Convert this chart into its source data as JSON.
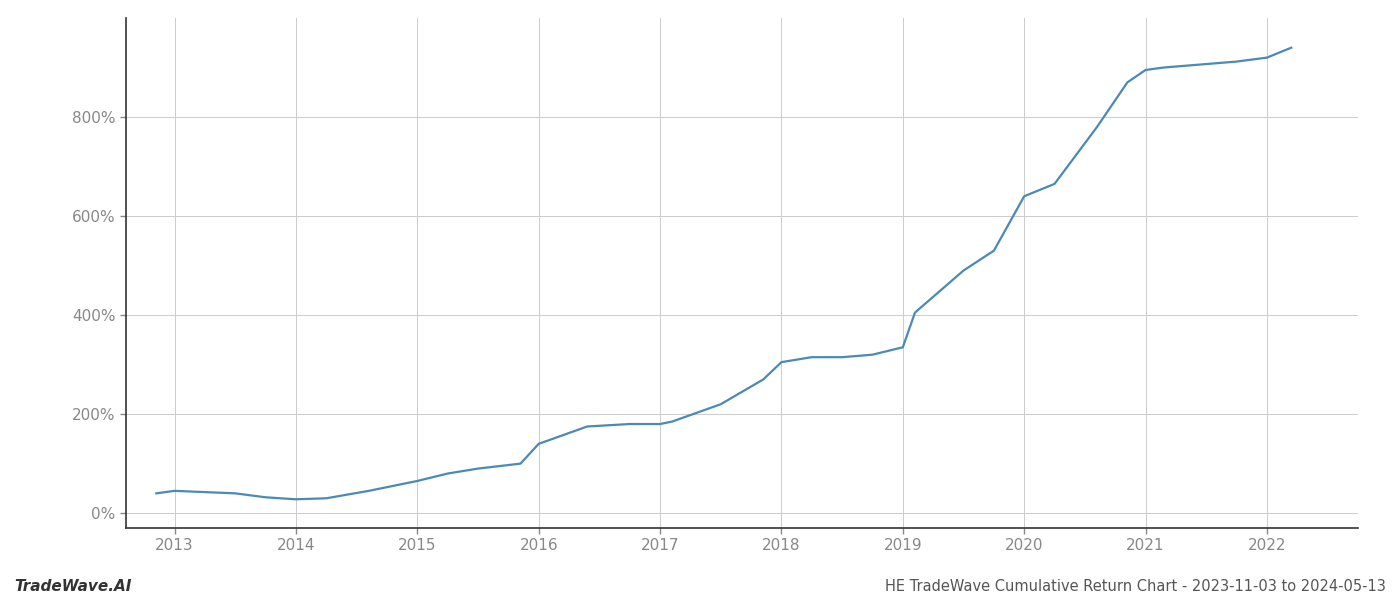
{
  "title": "HE TradeWave Cumulative Return Chart - 2023-11-03 to 2024-05-13",
  "watermark": "TradeWave.AI",
  "line_color": "#4a8ab5",
  "background_color": "#ffffff",
  "grid_color": "#cccccc",
  "x_years": [
    2013,
    2014,
    2015,
    2016,
    2017,
    2018,
    2019,
    2020,
    2021,
    2022
  ],
  "x_values": [
    2012.85,
    2013.0,
    2013.5,
    2013.75,
    2014.0,
    2014.25,
    2014.6,
    2015.0,
    2015.25,
    2015.5,
    2015.85,
    2016.0,
    2016.4,
    2016.75,
    2017.0,
    2017.1,
    2017.5,
    2017.85,
    2018.0,
    2018.25,
    2018.5,
    2018.75,
    2019.0,
    2019.1,
    2019.5,
    2019.75,
    2020.0,
    2020.25,
    2020.6,
    2020.85,
    2021.0,
    2021.15,
    2021.4,
    2021.75,
    2022.0,
    2022.2
  ],
  "y_values": [
    40,
    45,
    40,
    32,
    28,
    30,
    45,
    65,
    80,
    90,
    100,
    140,
    175,
    180,
    180,
    185,
    220,
    270,
    305,
    315,
    315,
    320,
    335,
    405,
    490,
    530,
    640,
    665,
    780,
    870,
    895,
    900,
    905,
    912,
    920,
    940
  ],
  "ylim": [
    -30,
    1000
  ],
  "yticks": [
    0,
    200,
    400,
    600,
    800
  ],
  "xlim": [
    2012.6,
    2022.75
  ],
  "line_width": 1.6,
  "title_fontsize": 10.5,
  "watermark_fontsize": 11,
  "tick_fontsize": 11,
  "tick_color": "#888888",
  "spine_color": "#333333",
  "left_spine_color": "#333333"
}
